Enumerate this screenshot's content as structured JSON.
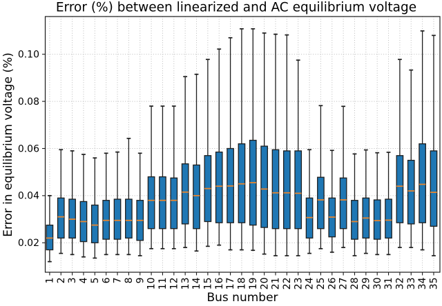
{
  "figure": {
    "title": "Error (%) between linearized and AC equilibrium voltage"
  },
  "chart_data": {
    "type": "boxplot",
    "title": "Error (%) between linearized and AC equilibrium voltage",
    "xlabel": "Bus number",
    "ylabel": "Error in equilibrium voltage (%)",
    "ylim": [
      0.0075,
      0.116
    ],
    "yticks": [
      0.02,
      0.04,
      0.06,
      0.08,
      0.1
    ],
    "grid": true,
    "grid_style": "dotted",
    "legend": "none",
    "categories": [
      "1",
      "2",
      "3",
      "4",
      "5",
      "6",
      "7",
      "8",
      "9",
      "10",
      "11",
      "12",
      "13",
      "14",
      "15",
      "16",
      "17",
      "18",
      "19",
      "20",
      "21",
      "22",
      "23",
      "24",
      "25",
      "26",
      "27",
      "28",
      "29",
      "30",
      "31",
      "32",
      "33",
      "34",
      "35"
    ],
    "boxes": [
      {
        "bus": "1",
        "whislo": 0.012,
        "q1": 0.017,
        "med": 0.022,
        "q3": 0.0275,
        "whishi": 0.04
      },
      {
        "bus": "2",
        "whislo": 0.0155,
        "q1": 0.022,
        "med": 0.031,
        "q3": 0.039,
        "whishi": 0.0595
      },
      {
        "bus": "3",
        "whislo": 0.015,
        "q1": 0.022,
        "med": 0.03,
        "q3": 0.0385,
        "whishi": 0.059
      },
      {
        "bus": "4",
        "whislo": 0.014,
        "q1": 0.0205,
        "med": 0.029,
        "q3": 0.0375,
        "whishi": 0.0575
      },
      {
        "bus": "5",
        "whislo": 0.0135,
        "q1": 0.02,
        "med": 0.0275,
        "q3": 0.036,
        "whishi": 0.056
      },
      {
        "bus": "6",
        "whislo": 0.015,
        "q1": 0.0215,
        "med": 0.0295,
        "q3": 0.038,
        "whishi": 0.058
      },
      {
        "bus": "7",
        "whislo": 0.015,
        "q1": 0.0215,
        "med": 0.0295,
        "q3": 0.0385,
        "whishi": 0.0585
      },
      {
        "bus": "8",
        "whislo": 0.015,
        "q1": 0.022,
        "med": 0.0295,
        "q3": 0.0385,
        "whishi": 0.0643
      },
      {
        "bus": "9",
        "whislo": 0.0145,
        "q1": 0.021,
        "med": 0.0295,
        "q3": 0.038,
        "whishi": 0.058
      },
      {
        "bus": "10",
        "whislo": 0.0175,
        "q1": 0.026,
        "med": 0.038,
        "q3": 0.048,
        "whishi": 0.078
      },
      {
        "bus": "11",
        "whislo": 0.0175,
        "q1": 0.026,
        "med": 0.038,
        "q3": 0.048,
        "whishi": 0.078
      },
      {
        "bus": "12",
        "whislo": 0.0175,
        "q1": 0.026,
        "med": 0.038,
        "q3": 0.0475,
        "whishi": 0.078
      },
      {
        "bus": "13",
        "whislo": 0.018,
        "q1": 0.028,
        "med": 0.0415,
        "q3": 0.0535,
        "whishi": 0.0905
      },
      {
        "bus": "14",
        "whislo": 0.0165,
        "q1": 0.026,
        "med": 0.04,
        "q3": 0.053,
        "whishi": 0.0915
      },
      {
        "bus": "15",
        "whislo": 0.0185,
        "q1": 0.029,
        "med": 0.043,
        "q3": 0.057,
        "whishi": 0.0978
      },
      {
        "bus": "16",
        "whislo": 0.019,
        "q1": 0.0285,
        "med": 0.044,
        "q3": 0.0585,
        "whishi": 0.1022
      },
      {
        "bus": "17",
        "whislo": 0.017,
        "q1": 0.0285,
        "med": 0.0441,
        "q3": 0.06,
        "whishi": 0.107
      },
      {
        "bus": "18",
        "whislo": 0.017,
        "q1": 0.0285,
        "med": 0.045,
        "q3": 0.062,
        "whishi": 0.1108
      },
      {
        "bus": "19",
        "whislo": 0.0168,
        "q1": 0.0275,
        "med": 0.0455,
        "q3": 0.0635,
        "whishi": 0.1108
      },
      {
        "bus": "20",
        "whislo": 0.0152,
        "q1": 0.0265,
        "med": 0.0428,
        "q3": 0.061,
        "whishi": 0.109
      },
      {
        "bus": "21",
        "whislo": 0.0145,
        "q1": 0.026,
        "med": 0.0412,
        "q3": 0.0595,
        "whishi": 0.1085
      },
      {
        "bus": "22",
        "whislo": 0.0145,
        "q1": 0.026,
        "med": 0.0412,
        "q3": 0.059,
        "whishi": 0.1082
      },
      {
        "bus": "23",
        "whislo": 0.0145,
        "q1": 0.026,
        "med": 0.041,
        "q3": 0.059,
        "whishi": 0.0975
      },
      {
        "bus": "24",
        "whislo": 0.0155,
        "q1": 0.022,
        "med": 0.0307,
        "q3": 0.039,
        "whishi": 0.0595
      },
      {
        "bus": "25",
        "whislo": 0.0175,
        "q1": 0.026,
        "med": 0.0382,
        "q3": 0.0478,
        "whishi": 0.0782
      },
      {
        "bus": "26",
        "whislo": 0.016,
        "q1": 0.0225,
        "med": 0.0309,
        "q3": 0.039,
        "whishi": 0.0592
      },
      {
        "bus": "27",
        "whislo": 0.018,
        "q1": 0.026,
        "med": 0.0382,
        "q3": 0.0475,
        "whishi": 0.0779
      },
      {
        "bus": "28",
        "whislo": 0.0145,
        "q1": 0.0215,
        "med": 0.029,
        "q3": 0.038,
        "whishi": 0.0577
      },
      {
        "bus": "29",
        "whislo": 0.0155,
        "q1": 0.022,
        "med": 0.0305,
        "q3": 0.039,
        "whishi": 0.0594
      },
      {
        "bus": "30",
        "whislo": 0.015,
        "q1": 0.0215,
        "med": 0.0294,
        "q3": 0.0382,
        "whishi": 0.0582
      },
      {
        "bus": "31",
        "whislo": 0.015,
        "q1": 0.022,
        "med": 0.0296,
        "q3": 0.0385,
        "whishi": 0.0584
      },
      {
        "bus": "32",
        "whislo": 0.018,
        "q1": 0.0285,
        "med": 0.044,
        "q3": 0.057,
        "whishi": 0.0978
      },
      {
        "bus": "33",
        "whislo": 0.018,
        "q1": 0.028,
        "med": 0.042,
        "q3": 0.055,
        "whishi": 0.0933
      },
      {
        "bus": "34",
        "whislo": 0.017,
        "q1": 0.0285,
        "med": 0.0448,
        "q3": 0.062,
        "whishi": 0.1099
      },
      {
        "bus": "35",
        "whislo": 0.0145,
        "q1": 0.027,
        "med": 0.0414,
        "q3": 0.059,
        "whishi": 0.108
      }
    ],
    "colors": {
      "box_fill": "#1f77b4",
      "box_edge": "#1d1d1d",
      "median": "#e8862f",
      "whisker": "#1d1d1d",
      "grid": "#b9b9b9",
      "spine": "#1a1a1a",
      "text": "#000000",
      "background": "#ffffff"
    }
  }
}
